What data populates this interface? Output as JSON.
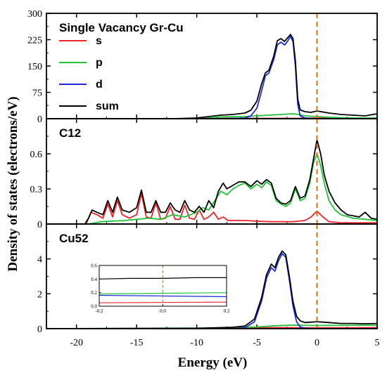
{
  "figure": {
    "xlabel": "Energy (eV)",
    "ylabel": "Density of states (electrons/eV)"
  },
  "chart_data": [
    {
      "type": "line",
      "panel_label": "Single Vacancy Gr-Cu",
      "xlim": [
        -22.5,
        5
      ],
      "ylim": [
        0,
        300
      ],
      "x_ticks": [
        -20,
        -15,
        -10,
        -5,
        0,
        5
      ],
      "y_ticks": [
        0,
        75,
        150,
        225,
        300
      ],
      "fermi_level": 0,
      "legend": {
        "position": "top-left",
        "entries": [
          "s",
          "p",
          "d",
          "sum"
        ]
      },
      "series": [
        {
          "name": "s",
          "color": "#e8262b",
          "x": [
            -22.5,
            -10,
            -8,
            -5,
            -3,
            -1.5,
            0,
            2,
            5
          ],
          "y": [
            0,
            0,
            1,
            1,
            1,
            1,
            2,
            1,
            1
          ]
        },
        {
          "name": "p",
          "color": "#22c13a",
          "x": [
            -22.5,
            -10,
            -9,
            -8,
            -6,
            -5,
            -4,
            -3,
            -2,
            -1.5,
            -1,
            0,
            1,
            2,
            3,
            5
          ],
          "y": [
            0,
            0,
            2,
            5,
            6,
            8,
            10,
            12,
            14,
            12,
            8,
            6,
            4,
            3,
            2,
            2
          ]
        },
        {
          "name": "d",
          "color": "#1f2bd6",
          "x": [
            -22.5,
            -8,
            -6,
            -5.5,
            -5,
            -4.6,
            -4.3,
            -4.0,
            -3.6,
            -3.3,
            -3.0,
            -2.7,
            -2.5,
            -2.2,
            -2.0,
            -1.8,
            -1.6,
            -1.4,
            -1.0,
            0,
            5
          ],
          "y": [
            0,
            0,
            2,
            8,
            30,
            80,
            122,
            130,
            168,
            210,
            218,
            210,
            218,
            234,
            220,
            150,
            40,
            8,
            2,
            0,
            0
          ]
        },
        {
          "name": "sum",
          "color": "#000000",
          "x": [
            -22.5,
            -12,
            -10,
            -9,
            -8,
            -7,
            -6,
            -5.5,
            -5,
            -4.6,
            -4.3,
            -4.0,
            -3.6,
            -3.3,
            -3.0,
            -2.7,
            -2.5,
            -2.2,
            -2.0,
            -1.8,
            -1.6,
            -1.4,
            -1.0,
            -0.5,
            0,
            1,
            2,
            3,
            4,
            5
          ],
          "y": [
            0,
            0,
            2,
            6,
            10,
            12,
            16,
            24,
            50,
            100,
            130,
            138,
            178,
            222,
            228,
            220,
            228,
            240,
            228,
            165,
            55,
            25,
            20,
            18,
            22,
            16,
            12,
            10,
            8,
            14
          ]
        }
      ]
    },
    {
      "type": "line",
      "panel_label": "C12",
      "xlim": [
        -22.5,
        5
      ],
      "ylim": [
        0,
        0.9
      ],
      "y_ticks": [
        0,
        0.3,
        0.6
      ],
      "fermi_level": 0,
      "series": [
        {
          "name": "s",
          "color": "#e8262b",
          "x": [
            -22.5,
            -19.2,
            -18.8,
            -18.3,
            -17.8,
            -17.4,
            -17.0,
            -16.6,
            -16.2,
            -15.6,
            -15.0,
            -14.6,
            -14.2,
            -13.8,
            -13.4,
            -13.0,
            -12.6,
            -12.2,
            -11.8,
            -11.4,
            -11.0,
            -10.6,
            -10.2,
            -9.8,
            -9.4,
            -9.0,
            -8.6,
            -8.2,
            -7.8,
            -7.4,
            -6,
            -4,
            -2,
            -1,
            -0.5,
            0,
            0.5,
            1,
            2,
            3,
            4,
            5
          ],
          "y": [
            0,
            0,
            0.1,
            0.08,
            0.05,
            0.17,
            0.06,
            0.2,
            0.08,
            0.05,
            0.08,
            0.26,
            0.06,
            0.05,
            0.18,
            0.04,
            0.05,
            0.15,
            0.04,
            0.04,
            0.16,
            0.05,
            0.04,
            0.12,
            0.04,
            0.06,
            0.1,
            0.04,
            0.06,
            0.03,
            0.03,
            0.02,
            0.02,
            0.03,
            0.06,
            0.11,
            0.06,
            0.02,
            0.01,
            0.01,
            0.01,
            0.01
          ]
        },
        {
          "name": "p",
          "color": "#22c13a",
          "x": [
            -22.5,
            -19,
            -18,
            -16,
            -14,
            -13,
            -12,
            -11,
            -10,
            -9.5,
            -9,
            -8.5,
            -8,
            -7.5,
            -7,
            -6.5,
            -6,
            -5.5,
            -5,
            -4.6,
            -4.2,
            -3.8,
            -3.4,
            -3.0,
            -2.6,
            -2.2,
            -1.8,
            -1.4,
            -1.0,
            -0.6,
            -0.3,
            0,
            0.3,
            0.6,
            1,
            1.5,
            2,
            3,
            4,
            5
          ],
          "y": [
            0,
            0,
            0.02,
            0.03,
            0.05,
            0.04,
            0.08,
            0.06,
            0.1,
            0.14,
            0.12,
            0.2,
            0.28,
            0.25,
            0.3,
            0.33,
            0.35,
            0.3,
            0.34,
            0.31,
            0.36,
            0.33,
            0.2,
            0.17,
            0.15,
            0.18,
            0.3,
            0.2,
            0.22,
            0.35,
            0.52,
            0.6,
            0.5,
            0.35,
            0.2,
            0.12,
            0.08,
            0.05,
            0.04,
            0.03
          ]
        },
        {
          "name": "sum",
          "color": "#000000",
          "x": [
            -22.5,
            -19.3,
            -19.0,
            -18.7,
            -18.3,
            -17.8,
            -17.4,
            -17.0,
            -16.6,
            -16.2,
            -15.6,
            -15.0,
            -14.6,
            -14.2,
            -13.8,
            -13.4,
            -13.0,
            -12.6,
            -12.2,
            -11.8,
            -11.4,
            -11.0,
            -10.6,
            -10.2,
            -9.8,
            -9.4,
            -9.0,
            -8.6,
            -8.2,
            -7.8,
            -7.5,
            -7,
            -6.5,
            -6,
            -5.5,
            -5,
            -4.6,
            -4.2,
            -3.8,
            -3.4,
            -3.0,
            -2.6,
            -2.2,
            -1.8,
            -1.4,
            -1.0,
            -0.6,
            -0.3,
            0,
            0.3,
            0.6,
            1,
            1.5,
            2,
            2.5,
            3,
            3.5,
            4,
            4.5,
            5
          ],
          "y": [
            0,
            0,
            0.05,
            0.12,
            0.1,
            0.08,
            0.2,
            0.1,
            0.23,
            0.12,
            0.1,
            0.14,
            0.29,
            0.1,
            0.1,
            0.2,
            0.1,
            0.1,
            0.18,
            0.12,
            0.1,
            0.2,
            0.12,
            0.1,
            0.15,
            0.1,
            0.2,
            0.14,
            0.28,
            0.35,
            0.3,
            0.33,
            0.36,
            0.36,
            0.32,
            0.37,
            0.34,
            0.38,
            0.35,
            0.22,
            0.18,
            0.17,
            0.2,
            0.32,
            0.22,
            0.24,
            0.38,
            0.55,
            0.72,
            0.6,
            0.42,
            0.28,
            0.18,
            0.12,
            0.08,
            0.07,
            0.06,
            0.1,
            0.05,
            0.04
          ]
        }
      ]
    },
    {
      "type": "line",
      "panel_label": "Cu52",
      "xlim": [
        -22.5,
        5
      ],
      "ylim": [
        0,
        6
      ],
      "y_ticks": [
        0,
        2,
        4
      ],
      "fermi_level": 0,
      "series": [
        {
          "name": "s",
          "color": "#e8262b",
          "x": [
            -22.5,
            -8,
            -5,
            -3,
            0,
            5
          ],
          "y": [
            0,
            0.02,
            0.05,
            0.06,
            0.05,
            0.06
          ]
        },
        {
          "name": "p",
          "color": "#22c13a",
          "x": [
            -22.5,
            -8,
            -5,
            -3,
            -2,
            0,
            5
          ],
          "y": [
            0,
            0.04,
            0.1,
            0.18,
            0.2,
            0.18,
            0.2
          ]
        },
        {
          "name": "d",
          "color": "#1f2bd6",
          "x": [
            -22.5,
            -7,
            -6,
            -5.2,
            -4.6,
            -4.2,
            -3.8,
            -3.5,
            -3.2,
            -2.9,
            -2.6,
            -2.3,
            -2.0,
            -1.7,
            -1.4,
            -1.0,
            0,
            5
          ],
          "y": [
            0,
            0,
            0.05,
            0.4,
            1.6,
            2.9,
            3.5,
            3.3,
            3.9,
            4.3,
            4.1,
            2.8,
            1.3,
            0.4,
            0.1,
            0.02,
            0,
            0
          ]
        },
        {
          "name": "sum",
          "color": "#000000",
          "x": [
            -22.5,
            -10,
            -8,
            -7,
            -6,
            -5.2,
            -4.6,
            -4.2,
            -3.8,
            -3.5,
            -3.2,
            -2.9,
            -2.6,
            -2.3,
            -2.0,
            -1.7,
            -1.4,
            -1.0,
            0,
            1,
            2,
            3,
            4,
            5
          ],
          "y": [
            0,
            0.02,
            0.06,
            0.08,
            0.15,
            0.55,
            1.8,
            3.1,
            3.7,
            3.5,
            4.1,
            4.45,
            4.25,
            3.0,
            1.55,
            0.7,
            0.45,
            0.35,
            0.4,
            0.35,
            0.3,
            0.3,
            0.28,
            0.3
          ]
        }
      ],
      "inset": {
        "xlim": [
          -0.2,
          0.2
        ],
        "ylim": [
          0,
          0.6
        ],
        "x_ticks": [
          "-0.2",
          "0.0",
          "0.2"
        ],
        "y_ticks": [
          "0.0",
          "0.2",
          "0.4",
          "0.6"
        ],
        "series": [
          {
            "name": "s",
            "color": "#e8262b",
            "x": [
              -0.2,
              0.2
            ],
            "y": [
              0.05,
              0.06
            ]
          },
          {
            "name": "d",
            "color": "#1f2bd6",
            "x": [
              -0.2,
              0.2
            ],
            "y": [
              0.16,
              0.14
            ]
          },
          {
            "name": "p",
            "color": "#22c13a",
            "x": [
              -0.2,
              0.2
            ],
            "y": [
              0.18,
              0.2
            ]
          },
          {
            "name": "sum",
            "color": "#000000",
            "x": [
              -0.2,
              -0.1,
              0,
              0.1,
              0.2
            ],
            "y": [
              0.4,
              0.41,
              0.41,
              0.42,
              0.42
            ]
          }
        ]
      }
    }
  ],
  "colors": {
    "fermi_line": "#e07820",
    "axes": "#000000"
  }
}
